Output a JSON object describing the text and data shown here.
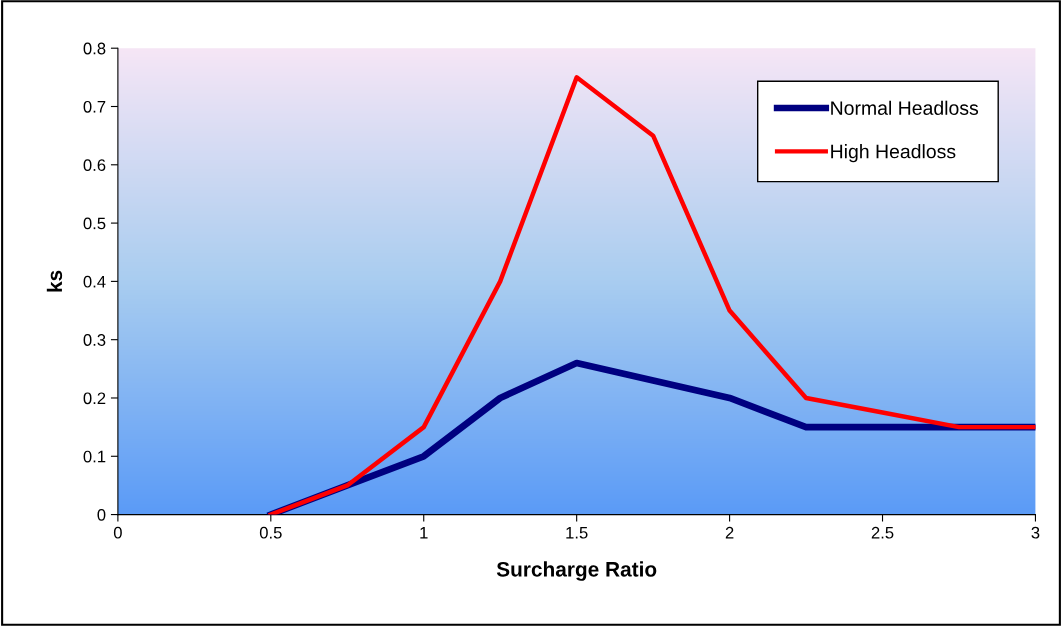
{
  "chart_data": {
    "type": "line",
    "xlabel": "Surcharge Ratio",
    "ylabel": "ks",
    "x": [
      0.5,
      0.75,
      1,
      1.25,
      1.5,
      1.75,
      2,
      2.25,
      2.5,
      2.75,
      3
    ],
    "series": [
      {
        "name": "Normal Headloss",
        "color": "#000080",
        "values": [
          0,
          0.05,
          0.1,
          0.2,
          0.26,
          0.23,
          0.2,
          0.15,
          0.15,
          0.15,
          0.15
        ]
      },
      {
        "name": "High Headloss",
        "color": "#ff0000",
        "values": [
          0,
          0.05,
          0.15,
          0.4,
          0.75,
          0.65,
          0.35,
          0.2,
          0.175,
          0.15,
          0.15
        ]
      }
    ],
    "xlim": [
      0,
      3
    ],
    "xticks": [
      0,
      0.5,
      1,
      1.5,
      2,
      2.5,
      3
    ],
    "ylim": [
      0,
      0.8
    ],
    "yticks": [
      0,
      0.1,
      0.2,
      0.3,
      0.4,
      0.5,
      0.6,
      0.7,
      0.8
    ],
    "grid": false,
    "legend": "top right",
    "marker": "none",
    "line_style": "solid"
  }
}
